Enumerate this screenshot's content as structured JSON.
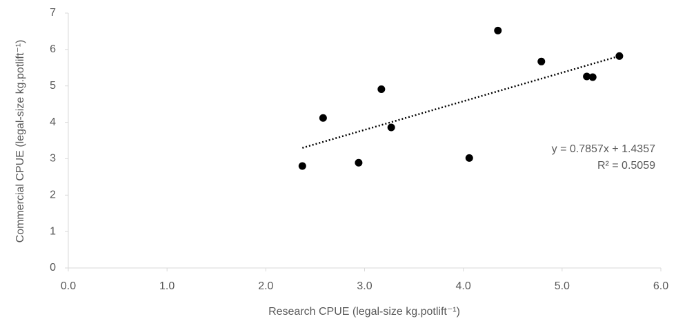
{
  "chart_data": {
    "type": "scatter",
    "x_label": "Research CPUE (legal-size kg.potlift⁻¹)",
    "y_label": "Commercial CPUE (legal-size kg.potlift⁻¹)",
    "x": [
      2.37,
      2.58,
      2.94,
      3.17,
      3.27,
      4.06,
      4.35,
      4.79,
      5.25,
      5.31,
      5.58
    ],
    "y": [
      2.8,
      4.12,
      2.89,
      4.91,
      3.86,
      3.02,
      6.52,
      5.67,
      5.26,
      5.24,
      5.82
    ],
    "color": "#000000",
    "xlim": [
      0,
      6
    ],
    "ylim": [
      0,
      7
    ],
    "xticks": [
      {
        "value": 0,
        "label": "0.0"
      },
      {
        "value": 1,
        "label": "1.0"
      },
      {
        "value": 2,
        "label": "2.0"
      },
      {
        "value": 3,
        "label": "3.0"
      },
      {
        "value": 4,
        "label": "4.0"
      },
      {
        "value": 5,
        "label": "5.0"
      },
      {
        "value": 6,
        "label": "6.0"
      }
    ],
    "yticks": [
      0,
      1,
      2,
      3,
      4,
      5,
      6,
      7
    ],
    "grid": false,
    "trendline": {
      "slope": 0.7857,
      "intercept": 1.4357,
      "equation": "y = 0.7857x + 1.4357",
      "r2": "R² = 0.5059"
    }
  }
}
